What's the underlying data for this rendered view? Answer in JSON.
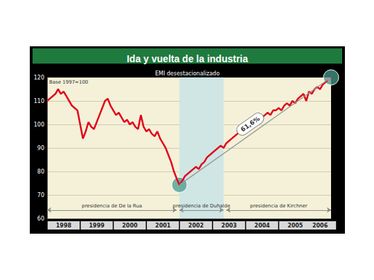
{
  "chart_data": {
    "type": "line",
    "title": "Ida y vuelta de la industria",
    "subtitle": "EMI desestacionalizado",
    "categories": [
      null,
      null,
      null,
      null,
      null,
      null,
      "1998",
      null,
      null,
      null,
      null,
      null,
      null,
      null,
      null,
      null,
      null,
      null,
      "1999",
      null,
      null,
      null,
      null,
      null,
      null,
      null,
      null,
      null,
      null,
      null,
      "2000",
      null,
      null,
      null,
      null,
      null,
      null,
      null,
      null,
      null,
      null,
      null,
      "2001",
      null,
      null,
      null,
      null,
      null,
      null,
      null,
      null,
      null,
      null,
      null,
      "2002",
      null,
      null,
      null,
      null,
      null,
      null,
      null,
      null,
      null,
      null,
      null,
      "2003",
      null,
      null,
      null,
      null,
      null,
      null,
      null,
      null,
      null,
      null,
      null,
      "2004",
      null,
      null,
      null,
      null,
      null,
      null,
      null,
      null,
      null,
      null,
      null,
      "2005",
      null,
      null,
      null,
      null,
      null,
      null,
      null,
      null,
      "2006",
      null,
      null,
      null,
      null
    ],
    "values": [
      110,
      111,
      112,
      113,
      115,
      113,
      114,
      112,
      110,
      108,
      107,
      106,
      100,
      94,
      97,
      101,
      99,
      98,
      101,
      104,
      107,
      110,
      111,
      108,
      106,
      104,
      105,
      103,
      101,
      102,
      100,
      101,
      99,
      98,
      104,
      99,
      97,
      98,
      96,
      95,
      97,
      94,
      92,
      90,
      87,
      84,
      80,
      77,
      74.3,
      76,
      78,
      79,
      80,
      81,
      82,
      81,
      83,
      84,
      86,
      87,
      88,
      89,
      90,
      91,
      90,
      92,
      93,
      94,
      95,
      96,
      97,
      98,
      99,
      100,
      101,
      102,
      101,
      103,
      103,
      104,
      105,
      104,
      106,
      106,
      107,
      106,
      108,
      109,
      108,
      110,
      109,
      111,
      112,
      113,
      110,
      114,
      113,
      115,
      116,
      115,
      117,
      118,
      119,
      120
    ],
    "color": "#e2001a",
    "ylim": [
      60,
      120
    ],
    "yticks": [
      60,
      70,
      80,
      90,
      100,
      110,
      120
    ],
    "grid": true,
    "annotations": [
      {
        "text": "Base 1997=100"
      },
      {
        "text": "61,6%",
        "from": 48,
        "to": 103
      }
    ],
    "periods": [
      {
        "label": "presidencia de De la Rua",
        "start": 0,
        "end": 47
      },
      {
        "label": "presidencia de Duhalde",
        "start": 48,
        "end": 64,
        "color": "#cfe6e4"
      },
      {
        "label": "presidencia de Kirchner",
        "start": 65,
        "end": 103
      }
    ]
  }
}
